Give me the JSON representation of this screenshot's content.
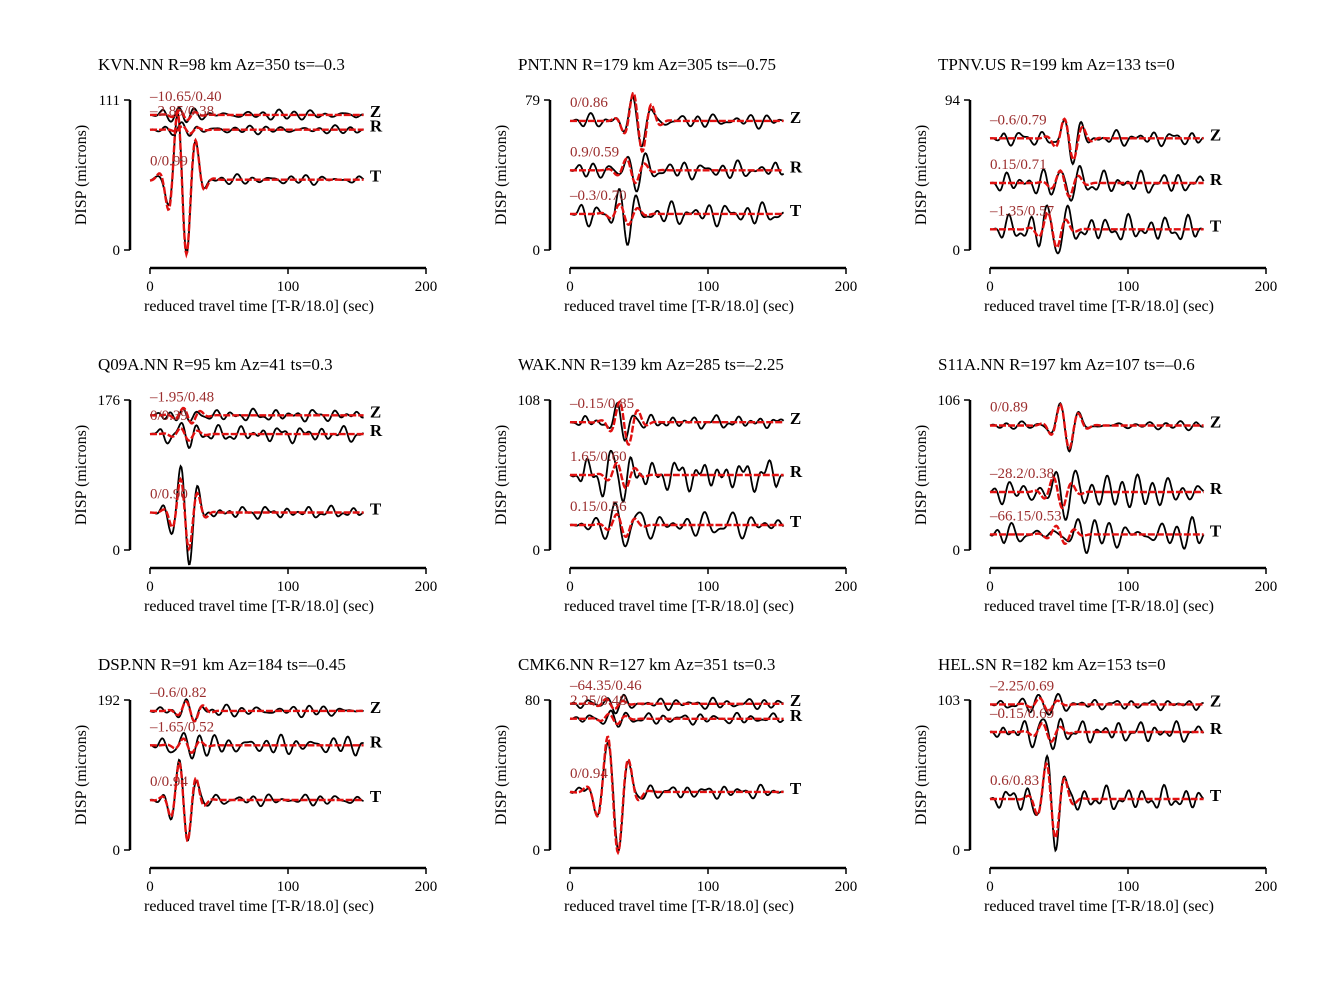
{
  "chart_data": [
    {
      "type": "line",
      "title": "KVN.NN R=98 km Az=350 ts=–0.3",
      "ylabel": "DISP (microns)",
      "xlabel": "reduced travel time [T-R/18.0] (sec)",
      "xlim": [
        0,
        200
      ],
      "xticks": [
        "0",
        "100",
        "200"
      ],
      "ylim": [
        0,
        111
      ],
      "yticks": [
        "0",
        "111"
      ],
      "traces": [
        {
          "component": "Z",
          "offset": 100,
          "label": "–10.65/0.40",
          "obs": {
            "amp": 3.5,
            "packet_t": 25,
            "period": 12,
            "noise": 3,
            "seed": 1
          },
          "syn": {
            "amp": 4,
            "packet_t": 25,
            "period": 12
          }
        },
        {
          "component": "R",
          "offset": 89,
          "label": "–2.85/0.38",
          "obs": {
            "amp": 3,
            "packet_t": 27,
            "period": 12,
            "noise": 2.5,
            "seed": 2
          },
          "syn": {
            "amp": 3,
            "packet_t": 27,
            "period": 12
          }
        },
        {
          "component": "T",
          "offset": 52,
          "label": "0/0.99",
          "obs": {
            "amp": 58,
            "packet_t": 24,
            "period": 14,
            "noise": 3,
            "seed": 3
          },
          "syn": {
            "amp": 58,
            "packet_t": 24,
            "period": 14
          }
        }
      ]
    },
    {
      "type": "line",
      "title": "PNT.NN R=179 km Az=305 ts=–0.75",
      "ylabel": "DISP (microns)",
      "xlabel": "reduced travel time [T-R/18.0] (sec)",
      "xlim": [
        0,
        200
      ],
      "xticks": [
        "0",
        "100",
        "200"
      ],
      "ylim": [
        0,
        79
      ],
      "yticks": [
        "0",
        "79"
      ],
      "traces": [
        {
          "component": "Z",
          "offset": 68,
          "label": "0/0.86",
          "obs": {
            "amp": 16,
            "packet_t": 50,
            "period": 14,
            "noise": 3,
            "seed": 4
          },
          "syn": {
            "amp": 17,
            "packet_t": 50,
            "period": 14
          }
        },
        {
          "component": "R",
          "offset": 42,
          "label": "0.9/0.59",
          "obs": {
            "amp": 10,
            "packet_t": 45,
            "period": 14,
            "noise": 4,
            "seed": 5
          },
          "syn": {
            "amp": 7,
            "packet_t": 45,
            "period": 14
          }
        },
        {
          "component": "T",
          "offset": 19,
          "label": "–0.3/0.70",
          "obs": {
            "amp": 12,
            "packet_t": 40,
            "period": 14,
            "noise": 5,
            "seed": 6
          },
          "syn": {
            "amp": 6,
            "packet_t": 40,
            "period": 14
          }
        }
      ]
    },
    {
      "type": "line",
      "title": "TPNV.US R=199 km Az=133 ts=0",
      "ylabel": "DISP (microns)",
      "xlabel": "reduced travel time [T-R/18.0] (sec)",
      "xlim": [
        0,
        200
      ],
      "xticks": [
        "0",
        "100",
        "200"
      ],
      "ylim": [
        0,
        94
      ],
      "yticks": [
        "0",
        "94"
      ],
      "traces": [
        {
          "component": "Z",
          "offset": 70,
          "label": "–0.6/0.79",
          "obs": {
            "amp": 14,
            "packet_t": 58,
            "period": 14,
            "noise": 4,
            "seed": 7
          },
          "syn": {
            "amp": 14,
            "packet_t": 58,
            "period": 14
          }
        },
        {
          "component": "R",
          "offset": 42,
          "label": "0.15/0.71",
          "obs": {
            "amp": 12,
            "packet_t": 55,
            "period": 14,
            "noise": 6,
            "seed": 8
          },
          "syn": {
            "amp": 9,
            "packet_t": 55,
            "period": 14
          }
        },
        {
          "component": "T",
          "offset": 13,
          "label": "–1.35/0.57",
          "obs": {
            "amp": 14,
            "packet_t": 46,
            "period": 14,
            "noise": 7,
            "seed": 9
          },
          "syn": {
            "amp": 12,
            "packet_t": 46,
            "period": 14
          }
        }
      ]
    },
    {
      "type": "line",
      "title": "Q09A.NN R=95 km Az=41 ts=0.3",
      "ylabel": "DISP (microns)",
      "xlabel": "reduced travel time [T-R/18.0] (sec)",
      "xlim": [
        0,
        200
      ],
      "xticks": [
        "0",
        "100",
        "200"
      ],
      "ylim": [
        0,
        176
      ],
      "yticks": [
        "0",
        "176"
      ],
      "traces": [
        {
          "component": "Z",
          "offset": 158,
          "label": "–1.95/0.48",
          "obs": {
            "amp": 11,
            "packet_t": 28,
            "period": 13,
            "noise": 6,
            "seed": 10
          },
          "syn": {
            "amp": 10,
            "packet_t": 28,
            "period": 13
          }
        },
        {
          "component": "R",
          "offset": 136,
          "label": "0/0.39",
          "obs": {
            "amp": 10,
            "packet_t": 26,
            "period": 13,
            "noise": 8,
            "seed": 11
          },
          "syn": {
            "amp": 8,
            "packet_t": 26,
            "period": 13
          }
        },
        {
          "component": "T",
          "offset": 44,
          "label": "0/0.90",
          "obs": {
            "amp": 60,
            "packet_t": 26,
            "period": 13,
            "noise": 6,
            "seed": 12
          },
          "syn": {
            "amp": 45,
            "packet_t": 26,
            "period": 13
          }
        }
      ]
    },
    {
      "type": "line",
      "title": "WAK.NN R=139 km Az=285 ts=–2.25",
      "ylabel": "DISP (microns)",
      "xlabel": "reduced travel time [T-R/18.0] (sec)",
      "xlim": [
        0,
        200
      ],
      "xticks": [
        "0",
        "100",
        "200"
      ],
      "ylim": [
        0,
        108
      ],
      "yticks": [
        "0",
        "108"
      ],
      "traces": [
        {
          "component": "Z",
          "offset": 92,
          "label": "–0.15/0.85",
          "obs": {
            "amp": 16,
            "packet_t": 38,
            "period": 14,
            "noise": 4,
            "seed": 13
          },
          "syn": {
            "amp": 17,
            "packet_t": 40,
            "period": 14
          }
        },
        {
          "component": "R",
          "offset": 54,
          "label": "1.65/0.60",
          "obs": {
            "amp": 14,
            "packet_t": 35,
            "period": 14,
            "noise": 9,
            "seed": 14
          },
          "syn": {
            "amp": 10,
            "packet_t": 38,
            "period": 14
          }
        },
        {
          "component": "T",
          "offset": 18,
          "label": "0.15/0.56",
          "obs": {
            "amp": 12,
            "packet_t": 38,
            "period": 14,
            "noise": 8,
            "seed": 15
          },
          "syn": {
            "amp": 9,
            "packet_t": 38,
            "period": 14
          }
        }
      ]
    },
    {
      "type": "line",
      "title": "S11A.NN R=197 km Az=107 ts=–0.6",
      "ylabel": "DISP (microns)",
      "xlabel": "reduced travel time [T-R/18.0] (sec)",
      "xlim": [
        0,
        200
      ],
      "xticks": [
        "0",
        "100",
        "200"
      ],
      "ylim": [
        0,
        106
      ],
      "yticks": [
        "0",
        "106"
      ],
      "traces": [
        {
          "component": "Z",
          "offset": 88,
          "label": "0/0.89",
          "obs": {
            "amp": 19,
            "packet_t": 55,
            "period": 14,
            "noise": 3,
            "seed": 16
          },
          "syn": {
            "amp": 17,
            "packet_t": 55,
            "period": 14
          }
        },
        {
          "component": "R",
          "offset": 41,
          "label": "–28.2/0.38",
          "obs": {
            "amp": 18,
            "packet_t": 52,
            "period": 14,
            "noise": 9,
            "seed": 17
          },
          "syn": {
            "amp": 12,
            "packet_t": 50,
            "period": 14
          }
        },
        {
          "component": "T",
          "offset": 11,
          "label": "–66.15/0.53",
          "obs": {
            "amp": 12,
            "packet_t": 52,
            "period": 14,
            "noise": 9,
            "seed": 18
          },
          "syn": {
            "amp": 7,
            "packet_t": 52,
            "period": 14
          }
        }
      ]
    },
    {
      "type": "line",
      "title": "DSP.NN R=91 km Az=184 ts=–0.45",
      "ylabel": "DISP (microns)",
      "xlabel": "reduced travel time [T-R/18.0] (sec)",
      "xlim": [
        0,
        200
      ],
      "xticks": [
        "0",
        "100",
        "200"
      ],
      "ylim": [
        0,
        192
      ],
      "yticks": [
        "0",
        "192"
      ],
      "traces": [
        {
          "component": "Z",
          "offset": 178,
          "label": "–0.6/0.82",
          "obs": {
            "amp": 18,
            "packet_t": 30,
            "period": 13,
            "noise": 6,
            "seed": 19
          },
          "syn": {
            "amp": 14,
            "packet_t": 30,
            "period": 13
          }
        },
        {
          "component": "R",
          "offset": 134,
          "label": "–1.65/0.52",
          "obs": {
            "amp": 14,
            "packet_t": 28,
            "period": 13,
            "noise": 10,
            "seed": 20
          },
          "syn": {
            "amp": 10,
            "packet_t": 28,
            "period": 13
          }
        },
        {
          "component": "T",
          "offset": 64,
          "label": "0/0.94",
          "obs": {
            "amp": 58,
            "packet_t": 25,
            "period": 13,
            "noise": 6,
            "seed": 21
          },
          "syn": {
            "amp": 55,
            "packet_t": 25,
            "period": 13
          }
        }
      ]
    },
    {
      "type": "line",
      "title": "CMK6.NN R=127 km Az=351 ts=0.3",
      "ylabel": "DISP (microns)",
      "xlabel": "reduced travel time [T-R/18.0] (sec)",
      "xlim": [
        0,
        200
      ],
      "xticks": [
        "0",
        "100",
        "200"
      ],
      "ylim": [
        0,
        80
      ],
      "yticks": [
        "0",
        "80"
      ],
      "traces": [
        {
          "component": "Z",
          "offset": 78,
          "label": "–64.35/0.46",
          "obs": {
            "amp": 3,
            "packet_t": 30,
            "period": 13,
            "noise": 2.5,
            "seed": 22
          },
          "syn": {
            "amp": 3,
            "packet_t": 30,
            "period": 13
          }
        },
        {
          "component": "R",
          "offset": 70,
          "label": "2.25/0.48",
          "obs": {
            "amp": 3,
            "packet_t": 32,
            "period": 13,
            "noise": 2.5,
            "seed": 23
          },
          "syn": {
            "amp": 3,
            "packet_t": 32,
            "period": 13
          }
        },
        {
          "component": "T",
          "offset": 31,
          "label": "0/0.94",
          "obs": {
            "amp": 33,
            "packet_t": 32,
            "period": 16,
            "noise": 3,
            "seed": 24
          },
          "syn": {
            "amp": 34,
            "packet_t": 32,
            "period": 16
          }
        }
      ]
    },
    {
      "type": "line",
      "title": "HEL.SN R=182 km Az=153 ts=0",
      "ylabel": "DISP (microns)",
      "xlabel": "reduced travel time [T-R/18.0] (sec)",
      "xlim": [
        0,
        200
      ],
      "xticks": [
        "0",
        "100",
        "200"
      ],
      "ylim": [
        0,
        103
      ],
      "yticks": [
        "0",
        "103"
      ],
      "traces": [
        {
          "component": "Z",
          "offset": 100,
          "label": "–2.25/0.69",
          "obs": {
            "amp": 7,
            "packet_t": 40,
            "period": 14,
            "noise": 3,
            "seed": 25
          },
          "syn": {
            "amp": 5,
            "packet_t": 40,
            "period": 14
          }
        },
        {
          "component": "R",
          "offset": 81,
          "label": "–0.15/0.69",
          "obs": {
            "amp": 9,
            "packet_t": 42,
            "period": 14,
            "noise": 6,
            "seed": 26
          },
          "syn": {
            "amp": 7,
            "packet_t": 42,
            "period": 14
          }
        },
        {
          "component": "T",
          "offset": 35,
          "label": "0.6/0.83",
          "obs": {
            "amp": 28,
            "packet_t": 45,
            "period": 14,
            "noise": 7,
            "seed": 27
          },
          "syn": {
            "amp": 28,
            "packet_t": 45,
            "period": 14
          }
        }
      ]
    }
  ],
  "colors": {
    "observed": "#000000",
    "synthetic": "#e01010",
    "cc_label": "#9b2d2d"
  }
}
